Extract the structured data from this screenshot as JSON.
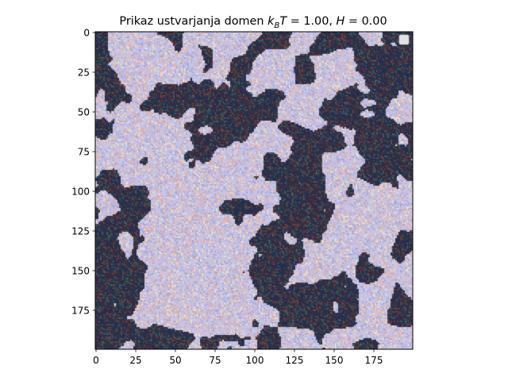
{
  "chart_data": {
    "type": "heatmap",
    "title": "Prikaz ustvarjanja domen",
    "title_math": {
      "base_k": "k",
      "sub": "B",
      "T": "T",
      "eq1": " = 1.00, ",
      "H": "H",
      "eq2": " = 0.00"
    },
    "xlabel": "",
    "ylabel": "",
    "grid_size": [
      200,
      200
    ],
    "xlim": [
      0,
      199
    ],
    "ylim": [
      199,
      0
    ],
    "xticks": [
      "0",
      "25",
      "50",
      "75",
      "100",
      "125",
      "150",
      "175"
    ],
    "yticks": [
      "0",
      "25",
      "50",
      "75",
      "100",
      "125",
      "150",
      "175"
    ],
    "xtick_values": [
      0,
      25,
      50,
      75,
      100,
      125,
      150,
      175
    ],
    "ytick_values": [
      0,
      25,
      50,
      75,
      100,
      125,
      150,
      175
    ],
    "spin_values": [
      -1,
      1
    ],
    "domain_colors": {
      "spin_up_background": "#c4c4e6",
      "spin_down_background": "#2b2f4a",
      "overlay_line_colors": [
        "#e8a080",
        "#9aa0e0",
        "#f0e0b0",
        "#8a3a2a",
        "#3a6a6a",
        "#20305a"
      ]
    },
    "legend": {
      "placement": "upper right",
      "entries": []
    },
    "grid": false
  }
}
